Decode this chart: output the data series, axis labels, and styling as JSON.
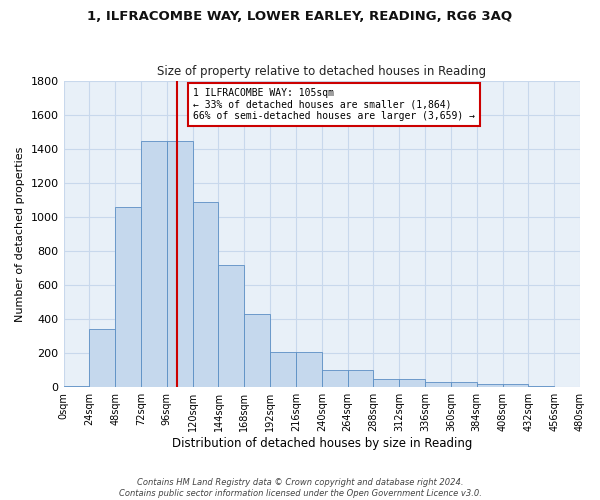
{
  "title_line1": "1, ILFRACOMBE WAY, LOWER EARLEY, READING, RG6 3AQ",
  "title_line2": "Size of property relative to detached houses in Reading",
  "xlabel": "Distribution of detached houses by size in Reading",
  "ylabel": "Number of detached properties",
  "footer_line1": "Contains HM Land Registry data © Crown copyright and database right 2024.",
  "footer_line2": "Contains public sector information licensed under the Open Government Licence v3.0.",
  "bin_start": 0,
  "bin_width": 24,
  "bar_values": [
    10,
    340,
    1060,
    1450,
    1450,
    1090,
    720,
    430,
    210,
    210,
    100,
    100,
    50,
    50,
    30,
    30,
    20,
    20,
    10,
    0
  ],
  "bar_color": "#c5d8ed",
  "bar_edge_color": "#5b8ec4",
  "xlim_min": 0,
  "xlim_max": 480,
  "ylim_min": 0,
  "ylim_max": 1800,
  "yticks": [
    0,
    200,
    400,
    600,
    800,
    1000,
    1200,
    1400,
    1600,
    1800
  ],
  "property_size": 105,
  "red_line_color": "#cc0000",
  "annotation_text": "1 ILFRACOMBE WAY: 105sqm\n← 33% of detached houses are smaller (1,864)\n66% of semi-detached houses are larger (3,659) →",
  "annotation_box_color": "#ffffff",
  "annotation_box_edge_color": "#cc0000",
  "grid_color": "#c8d8ec",
  "background_color": "#e8f0f8",
  "xtick_labels": [
    "0sqm",
    "24sqm",
    "48sqm",
    "72sqm",
    "96sqm",
    "120sqm",
    "144sqm",
    "168sqm",
    "192sqm",
    "216sqm",
    "240sqm",
    "264sqm",
    "288sqm",
    "312sqm",
    "336sqm",
    "360sqm",
    "384sqm",
    "408sqm",
    "432sqm",
    "456sqm",
    "480sqm"
  ]
}
